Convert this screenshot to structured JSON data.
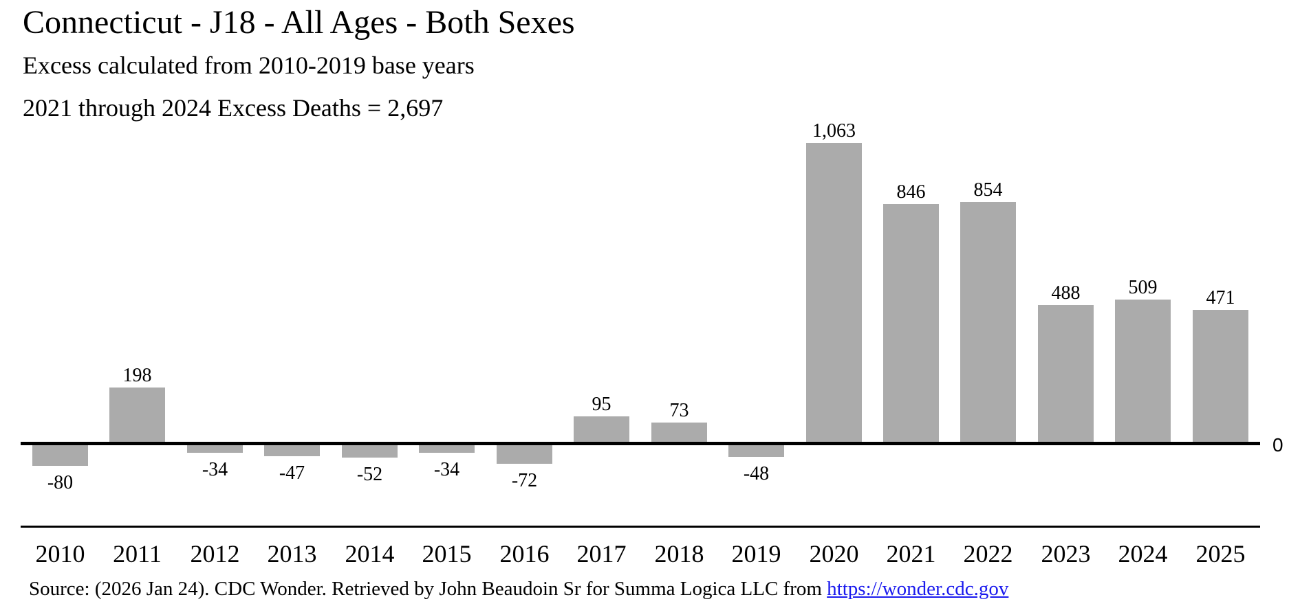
{
  "header": {
    "title": "Connecticut - J18 - All Ages - Both Sexes",
    "subtitle": "Excess calculated from 2010-2019 base years",
    "excess_line": "2021 through 2024 Excess Deaths = 2,697"
  },
  "chart_data": {
    "type": "bar",
    "title": "Connecticut - J18 - All Ages - Both Sexes",
    "categories": [
      "2010",
      "2011",
      "2012",
      "2013",
      "2014",
      "2015",
      "2016",
      "2017",
      "2018",
      "2019",
      "2020",
      "2021",
      "2022",
      "2023",
      "2024",
      "2025"
    ],
    "values": [
      -80,
      198,
      -34,
      -47,
      -52,
      -34,
      -72,
      95,
      73,
      -48,
      1063,
      846,
      854,
      488,
      509,
      471
    ],
    "value_labels": [
      "-80",
      "198",
      "-34",
      "-47",
      "-52",
      "-34",
      "-72",
      "95",
      "73",
      "-48",
      "1,063",
      "846",
      "854",
      "488",
      "509",
      "471"
    ],
    "xlabel": "",
    "ylabel": "",
    "zero_tick_label": "0",
    "ylim": [
      -120,
      1150
    ],
    "grid": false,
    "legend": false,
    "bar_color": "#ababab",
    "axis_color": "#000000",
    "label_position": "outside-end"
  },
  "source": {
    "prefix": "Source: (2026 Jan 24). CDC Wonder. Retrieved by John Beaudoin Sr for Summa Logica LLC from ",
    "link_text": "https://wonder.cdc.gov",
    "link_color": "#1a1aee"
  }
}
